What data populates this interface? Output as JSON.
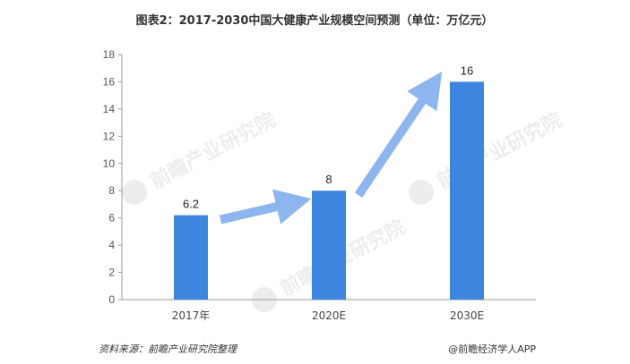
{
  "chart_data": {
    "type": "bar",
    "title": "图表2：2017-2030中国大健康产业规模空间预测（单位：万亿元）",
    "categories": [
      "2017年",
      "2020E",
      "2030E"
    ],
    "values": [
      6.2,
      8,
      16
    ],
    "data_labels": [
      "6.2",
      "8",
      "16"
    ],
    "ylim": [
      0,
      18
    ],
    "yticks": [
      0,
      2,
      4,
      6,
      8,
      10,
      12,
      14,
      16,
      18
    ],
    "xlabel": "",
    "ylabel": "",
    "grid": false,
    "legend": "none",
    "bar_color": "#3e85df",
    "arrow_color": "#8db5ee",
    "trend_arrows": [
      {
        "from": "2017年",
        "to": "2020E"
      },
      {
        "from": "2020E",
        "to": "2030E"
      }
    ]
  },
  "footer": {
    "source": "资料来源：前瞻产业研究院整理",
    "credit": "@前瞻经济学人APP"
  },
  "watermark": {
    "text": "前瞻产业研究院"
  }
}
